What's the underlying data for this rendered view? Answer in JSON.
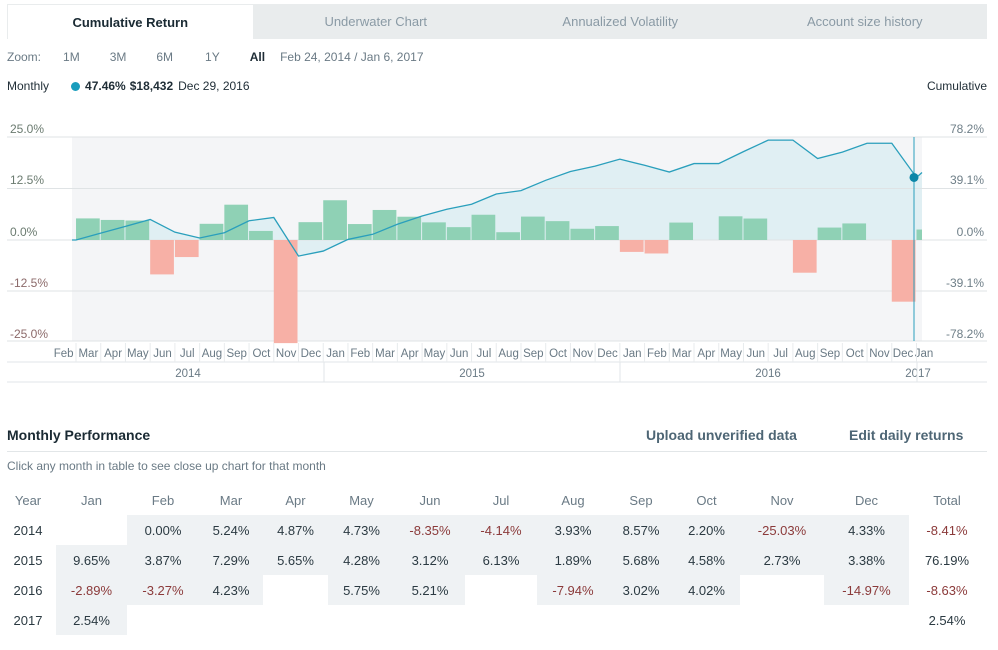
{
  "tabs": [
    "Cumulative Return",
    "Underwater Chart",
    "Annualized Volatility",
    "Account size history"
  ],
  "zoom": {
    "label": "Zoom:",
    "options": [
      "1M",
      "3M",
      "6M",
      "1Y",
      "All"
    ],
    "selected": "All",
    "range": "Feb 24, 2014 / Jan 6, 2017"
  },
  "info": {
    "mode": "Monthly",
    "percent": "47.46%",
    "value": "$18,432",
    "date": "Dec 29, 2016",
    "right_label": "Cumulative"
  },
  "colors": {
    "positive": "#8fd1b5",
    "negative": "#f7b0a6",
    "line": "#2a9fbc",
    "marker": "#0c86a8",
    "fill": "#dcedf2"
  },
  "chart_data": {
    "type": "bar+line",
    "left_axis": {
      "ticks": [
        "25.0%",
        "12.5%",
        "0.0%",
        "-12.5%",
        "-25.0%"
      ],
      "range": [
        -25,
        25
      ]
    },
    "right_axis": {
      "ticks": [
        "78.2%",
        "39.1%",
        "0.0%",
        "-39.1%",
        "-78.2%"
      ],
      "range": [
        -78.2,
        78.2
      ]
    },
    "months": [
      "Feb",
      "Mar",
      "Apr",
      "May",
      "Jun",
      "Jul",
      "Aug",
      "Sep",
      "Oct",
      "Nov",
      "Dec",
      "Jan",
      "Feb",
      "Mar",
      "Apr",
      "May",
      "Jun",
      "Jul",
      "Aug",
      "Sep",
      "Oct",
      "Nov",
      "Dec",
      "Jan",
      "Feb",
      "Mar",
      "Apr",
      "May",
      "Jun",
      "Jul",
      "Aug",
      "Sep",
      "Oct",
      "Nov",
      "Dec",
      "Jan"
    ],
    "monthly_returns": [
      0.0,
      5.24,
      4.87,
      4.73,
      -8.35,
      -4.14,
      3.93,
      8.57,
      2.2,
      -25.03,
      4.33,
      9.65,
      3.87,
      7.29,
      5.65,
      4.28,
      3.12,
      6.13,
      1.89,
      5.68,
      4.58,
      2.73,
      3.38,
      -2.89,
      -3.27,
      4.23,
      0,
      5.75,
      5.21,
      0,
      -7.94,
      3.02,
      4.02,
      0,
      -14.97,
      2.54
    ],
    "years": [
      "2014",
      "2015",
      "2016",
      "2017"
    ],
    "marker": {
      "date": "Dec 29, 2016",
      "cumulative": 47.46
    }
  },
  "monthly": {
    "title": "Monthly Performance",
    "upload": "Upload unverified data",
    "edit": "Edit daily returns",
    "hint": "Click any month in table to see close up chart for that month",
    "headers": [
      "Year",
      "Jan",
      "Feb",
      "Mar",
      "Apr",
      "May",
      "Jun",
      "Jul",
      "Aug",
      "Sep",
      "Oct",
      "Nov",
      "Dec",
      "Total"
    ],
    "rows": [
      [
        "2014",
        "",
        "0.00%",
        "5.24%",
        "4.87%",
        "4.73%",
        "-8.35%",
        "-4.14%",
        "3.93%",
        "8.57%",
        "2.20%",
        "-25.03%",
        "4.33%",
        "-8.41%"
      ],
      [
        "2015",
        "9.65%",
        "3.87%",
        "7.29%",
        "5.65%",
        "4.28%",
        "3.12%",
        "6.13%",
        "1.89%",
        "5.68%",
        "4.58%",
        "2.73%",
        "3.38%",
        "76.19%"
      ],
      [
        "2016",
        "-2.89%",
        "-3.27%",
        "4.23%",
        "",
        "5.75%",
        "5.21%",
        "",
        "-7.94%",
        "3.02%",
        "4.02%",
        "",
        "-14.97%",
        "-8.63%"
      ],
      [
        "2017",
        "2.54%",
        "",
        "",
        "",
        "",
        "",
        "",
        "",
        "",
        "",
        "",
        "",
        "2.54%"
      ]
    ]
  }
}
